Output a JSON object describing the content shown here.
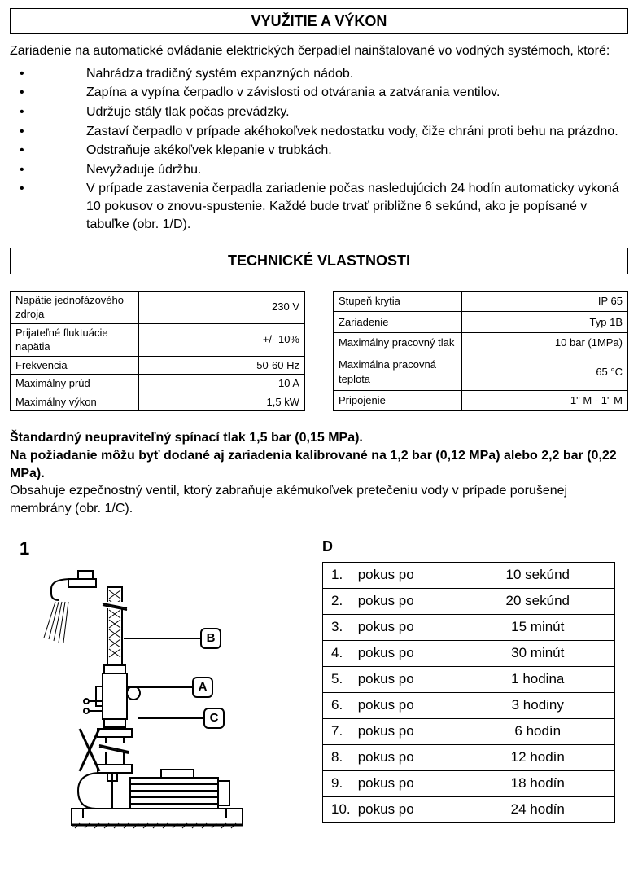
{
  "header1": "VYUŽITIE A VÝKON",
  "intro": "Zariadenie na automatické ovládanie elektrických čerpadiel nainštalované vo vodných systémoch, ktoré:",
  "bullets": [
    "Nahrádza tradičný systém expanzných nádob.",
    "Zapína a vypína čerpadlo v závislosti od otvárania a zatvárania ventilov.",
    "Udržuje stály tlak počas prevádzky.",
    "Zastaví čerpadlo v prípade akéhokoľvek nedostatku vody, čiže chráni proti behu na prázdno.",
    "Odstraňuje akékoľvek klepanie v trubkách.",
    "Nevyžaduje údržbu.",
    "V prípade zastavenia čerpadla zariadenie počas nasledujúcich 24 hodín automaticky vykoná 10 pokusov o znovu-spustenie. Každé bude trvať približne 6 sekúnd, ako je popísané v tabuľke (obr. 1/D)."
  ],
  "header2": "TECHNICKÉ VLASTNOSTI",
  "tech_left": [
    {
      "k": "Napätie jednofázového zdroja",
      "v": "230 V"
    },
    {
      "k": "Prijateľné fluktuácie napätia",
      "v": "+/- 10%"
    },
    {
      "k": "Frekvencia",
      "v": "50-60 Hz"
    },
    {
      "k": "Maximálny prúd",
      "v": "10 A"
    },
    {
      "k": "Maximálny výkon",
      "v": "1,5 kW"
    }
  ],
  "tech_right": [
    {
      "k": "Stupeň krytia",
      "v": "IP 65"
    },
    {
      "k": "Zariadenie",
      "v": "Typ 1B"
    },
    {
      "k": "Maximálny pracovný tlak",
      "v": "10 bar (1MPa)"
    },
    {
      "k": "Maximálna pracovná teplota",
      "v": "65 °C"
    },
    {
      "k": "Pripojenie",
      "v": "1\" M - 1\" M"
    }
  ],
  "note_b1": "Štandardný neupraviteľný spínací tlak 1,5 bar (0,15 MPa).",
  "note_b2": "Na požiadanie môžu byť dodané aj zariadenia kalibrované na 1,2 bar (0,12 MPa) alebo 2,2 bar (0,22 MPa).",
  "note_r": "Obsahuje ezpečnostný ventil, ktorý zabraňuje akémukoľvek pretečeniu vody v prípade porušenej membrány (obr. 1/C).",
  "fig_num": "1",
  "fig_labelA": "A",
  "fig_labelB": "B",
  "fig_labelC": "C",
  "d_title": "D",
  "d_rows": [
    {
      "n": "1.",
      "t": "pokus po",
      "v": "10 sekúnd"
    },
    {
      "n": "2.",
      "t": "pokus po",
      "v": "20 sekúnd"
    },
    {
      "n": "3.",
      "t": "pokus po",
      "v": "15 minút"
    },
    {
      "n": "4.",
      "t": "pokus po",
      "v": "30 minút"
    },
    {
      "n": "5.",
      "t": "pokus po",
      "v": "1 hodina"
    },
    {
      "n": "6.",
      "t": "pokus po",
      "v": "3 hodiny"
    },
    {
      "n": "7.",
      "t": "pokus po",
      "v": "6 hodín"
    },
    {
      "n": "8.",
      "t": "pokus po",
      "v": "12 hodín"
    },
    {
      "n": "9.",
      "t": "pokus po",
      "v": "18 hodín"
    },
    {
      "n": "10.",
      "t": "pokus po",
      "v": "24 hodín"
    }
  ],
  "colors": {
    "text": "#000000",
    "bg": "#ffffff",
    "border": "#000000"
  }
}
